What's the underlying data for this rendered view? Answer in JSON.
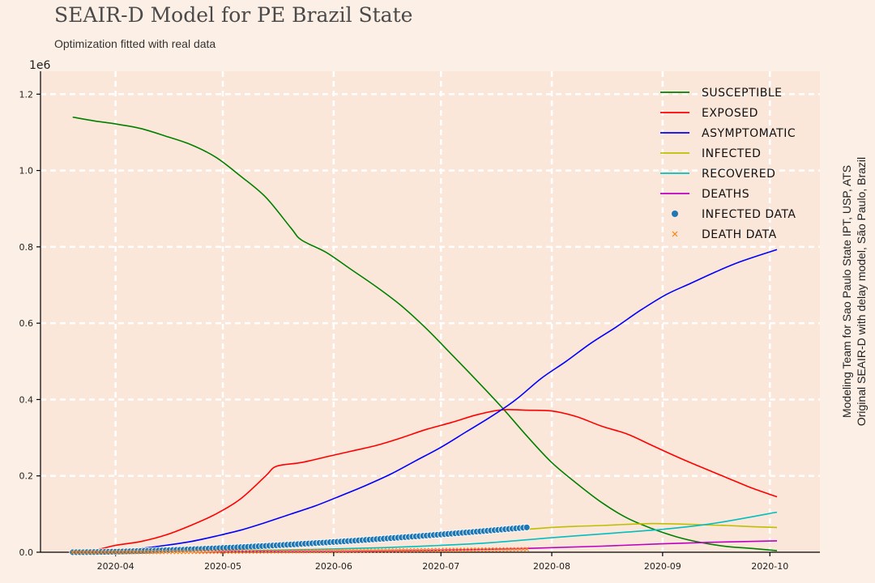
{
  "header": {
    "title": "SEAIR-D Model for PE Brazil State",
    "subtitle": "Optimization fitted with real data"
  },
  "side_note": {
    "line1": "Modeling Team for Sao Paulo State IPT, USP, ATS",
    "line2": "Original SEAIR-D with delay model, São Paulo, Brazil"
  },
  "colors": {
    "background": "#fcefe5",
    "plot_background": "#fae7da",
    "grid": "#ffffff"
  },
  "chart_data": {
    "type": "line",
    "title": "SEAIR-D Model for PE Brazil State",
    "subtitle": "Optimization fitted with real data",
    "xlabel": "",
    "ylabel": "",
    "y_scale_label": "1e6",
    "xlim": [
      "2020-03-11",
      "2020-10-15"
    ],
    "ylim": [
      0,
      1.26
    ],
    "x_ticks": [
      "2020-04-01",
      "2020-05-01",
      "2020-06-01",
      "2020-07-01",
      "2020-08-01",
      "2020-09-01",
      "2020-10-01"
    ],
    "x_tick_labels": [
      "2020-04",
      "2020-05",
      "2020-06",
      "2020-07",
      "2020-08",
      "2020-09",
      "2020-10"
    ],
    "y_ticks": [
      0,
      0.2,
      0.4,
      0.6,
      0.8,
      1.0,
      1.2
    ],
    "y_tick_labels": [
      "0.0",
      "0.2",
      "0.4",
      "0.6",
      "0.8",
      "1.0",
      "1.2"
    ],
    "grid": true,
    "legend_position": "top-right",
    "series": [
      {
        "name": "Susceptible",
        "color": "#008000",
        "points": [
          [
            "2020-03-20",
            1.14
          ],
          [
            "2020-03-26",
            1.13
          ],
          [
            "2020-04-01",
            1.122
          ],
          [
            "2020-04-08",
            1.11
          ],
          [
            "2020-04-15",
            1.09
          ],
          [
            "2020-04-22",
            1.068
          ],
          [
            "2020-04-29",
            1.035
          ],
          [
            "2020-05-06",
            0.985
          ],
          [
            "2020-05-13",
            0.93
          ],
          [
            "2020-05-20",
            0.85
          ],
          [
            "2020-05-23",
            0.818
          ],
          [
            "2020-05-30",
            0.785
          ],
          [
            "2020-06-06",
            0.74
          ],
          [
            "2020-06-13",
            0.695
          ],
          [
            "2020-06-20",
            0.645
          ],
          [
            "2020-06-27",
            0.585
          ],
          [
            "2020-07-04",
            0.518
          ],
          [
            "2020-07-11",
            0.45
          ],
          [
            "2020-07-18",
            0.38
          ],
          [
            "2020-07-25",
            0.305
          ],
          [
            "2020-08-01",
            0.235
          ],
          [
            "2020-08-08",
            0.18
          ],
          [
            "2020-08-15",
            0.13
          ],
          [
            "2020-08-22",
            0.09
          ],
          [
            "2020-08-29",
            0.062
          ],
          [
            "2020-09-05",
            0.04
          ],
          [
            "2020-09-12",
            0.025
          ],
          [
            "2020-09-19",
            0.015
          ],
          [
            "2020-09-26",
            0.01
          ],
          [
            "2020-10-03",
            0.004
          ]
        ]
      },
      {
        "name": "Exposed",
        "color": "#ff0000",
        "points": [
          [
            "2020-03-20",
            0.0
          ],
          [
            "2020-03-26",
            0.005
          ],
          [
            "2020-04-01",
            0.018
          ],
          [
            "2020-04-08",
            0.028
          ],
          [
            "2020-04-15",
            0.045
          ],
          [
            "2020-04-22",
            0.07
          ],
          [
            "2020-04-29",
            0.1
          ],
          [
            "2020-05-06",
            0.14
          ],
          [
            "2020-05-13",
            0.2
          ],
          [
            "2020-05-16",
            0.225
          ],
          [
            "2020-05-23",
            0.235
          ],
          [
            "2020-05-30",
            0.25
          ],
          [
            "2020-06-06",
            0.265
          ],
          [
            "2020-06-13",
            0.28
          ],
          [
            "2020-06-20",
            0.3
          ],
          [
            "2020-06-27",
            0.322
          ],
          [
            "2020-07-04",
            0.34
          ],
          [
            "2020-07-11",
            0.36
          ],
          [
            "2020-07-18",
            0.373
          ],
          [
            "2020-07-25",
            0.372
          ],
          [
            "2020-08-01",
            0.37
          ],
          [
            "2020-08-08",
            0.355
          ],
          [
            "2020-08-15",
            0.33
          ],
          [
            "2020-08-22",
            0.31
          ],
          [
            "2020-08-29",
            0.28
          ],
          [
            "2020-09-05",
            0.25
          ],
          [
            "2020-09-12",
            0.222
          ],
          [
            "2020-09-19",
            0.195
          ],
          [
            "2020-09-26",
            0.168
          ],
          [
            "2020-10-03",
            0.145
          ]
        ]
      },
      {
        "name": "Asymptomatic",
        "color": "#0000ff",
        "points": [
          [
            "2020-03-20",
            0.0
          ],
          [
            "2020-03-26",
            0.002
          ],
          [
            "2020-04-01",
            0.005
          ],
          [
            "2020-04-08",
            0.01
          ],
          [
            "2020-04-15",
            0.018
          ],
          [
            "2020-04-22",
            0.028
          ],
          [
            "2020-04-29",
            0.042
          ],
          [
            "2020-05-06",
            0.058
          ],
          [
            "2020-05-13",
            0.078
          ],
          [
            "2020-05-20",
            0.1
          ],
          [
            "2020-05-27",
            0.122
          ],
          [
            "2020-06-03",
            0.148
          ],
          [
            "2020-06-10",
            0.175
          ],
          [
            "2020-06-17",
            0.205
          ],
          [
            "2020-06-24",
            0.24
          ],
          [
            "2020-07-01",
            0.275
          ],
          [
            "2020-07-08",
            0.315
          ],
          [
            "2020-07-15",
            0.355
          ],
          [
            "2020-07-22",
            0.4
          ],
          [
            "2020-07-29",
            0.455
          ],
          [
            "2020-08-05",
            0.5
          ],
          [
            "2020-08-12",
            0.548
          ],
          [
            "2020-08-19",
            0.59
          ],
          [
            "2020-08-26",
            0.635
          ],
          [
            "2020-09-02",
            0.675
          ],
          [
            "2020-09-09",
            0.705
          ],
          [
            "2020-09-16",
            0.735
          ],
          [
            "2020-09-23",
            0.762
          ],
          [
            "2020-10-03",
            0.793
          ]
        ]
      },
      {
        "name": "Infected",
        "color": "#bfbf00",
        "points": [
          [
            "2020-07-25",
            0.06
          ],
          [
            "2020-08-01",
            0.065
          ],
          [
            "2020-08-08",
            0.068
          ],
          [
            "2020-08-15",
            0.07
          ],
          [
            "2020-08-22",
            0.073
          ],
          [
            "2020-08-29",
            0.075
          ],
          [
            "2020-09-05",
            0.074
          ],
          [
            "2020-09-12",
            0.072
          ],
          [
            "2020-09-19",
            0.07
          ],
          [
            "2020-09-26",
            0.067
          ],
          [
            "2020-10-03",
            0.065
          ]
        ]
      },
      {
        "name": "Recovered",
        "color": "#00bfbf",
        "points": [
          [
            "2020-03-20",
            0.0
          ],
          [
            "2020-04-15",
            0.002
          ],
          [
            "2020-05-15",
            0.005
          ],
          [
            "2020-06-15",
            0.012
          ],
          [
            "2020-07-01",
            0.018
          ],
          [
            "2020-07-15",
            0.025
          ],
          [
            "2020-08-01",
            0.038
          ],
          [
            "2020-08-15",
            0.048
          ],
          [
            "2020-09-01",
            0.06
          ],
          [
            "2020-09-15",
            0.075
          ],
          [
            "2020-10-03",
            0.105
          ]
        ]
      },
      {
        "name": "Deaths",
        "color": "#bf00bf",
        "points": [
          [
            "2020-03-20",
            0.0
          ],
          [
            "2020-06-01",
            0.002
          ],
          [
            "2020-07-01",
            0.005
          ],
          [
            "2020-07-25",
            0.01
          ],
          [
            "2020-08-15",
            0.016
          ],
          [
            "2020-09-01",
            0.022
          ],
          [
            "2020-09-15",
            0.026
          ],
          [
            "2020-10-03",
            0.03
          ]
        ]
      },
      {
        "name": "Infected Data",
        "color": "#1f77b4",
        "marker": "circle",
        "start": "2020-03-20",
        "end": "2020-07-25",
        "end_value": 0.065
      },
      {
        "name": "Death Data",
        "color": "#ff7f0e",
        "marker": "x",
        "start": "2020-03-20",
        "end": "2020-07-25",
        "end_value": 0.008
      }
    ]
  }
}
